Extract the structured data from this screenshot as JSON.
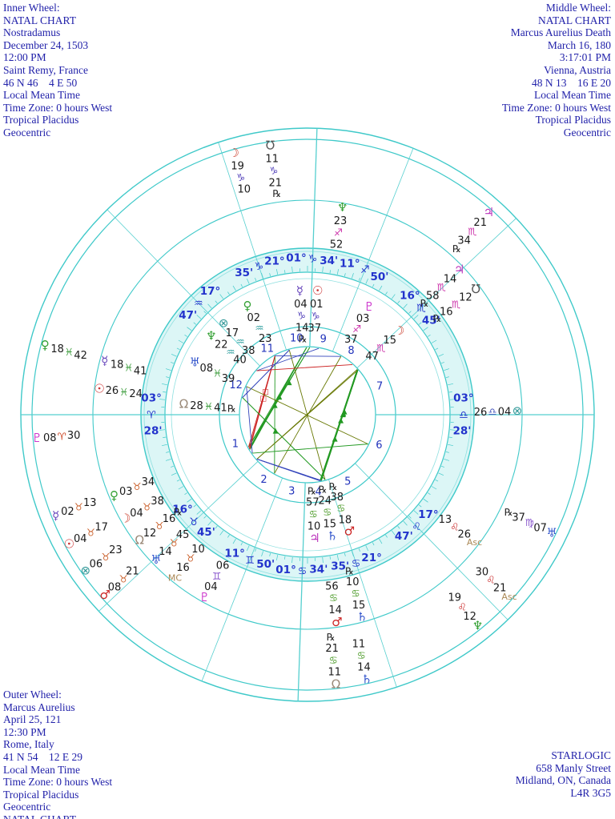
{
  "corner_blocks": {
    "top_left": {
      "lines": [
        "Inner Wheel:",
        "NATAL CHART",
        "Nostradamus",
        "December 24, 1503",
        "12:00 PM",
        "Saint Remy, France",
        "46 N 46    4 E 50",
        "Local Mean Time",
        "Time Zone: 0 hours West",
        "Tropical Placidus",
        "Geocentric"
      ]
    },
    "top_right": {
      "lines": [
        "Middle Wheel:",
        "NATAL CHART",
        "Marcus Aurelius Death",
        "March 16, 180",
        "3:17:01 PM",
        "Vienna, Austria",
        "48 N 13    16 E 20",
        "Local Mean Time",
        "Time Zone: 0 hours West",
        "Tropical Placidus",
        "Geocentric"
      ]
    },
    "bottom_left": {
      "lines": [
        "Outer Wheel:",
        "Marcus Aurelius",
        "April 25, 121",
        "12:30 PM",
        "Rome, Italy",
        "41 N 54    12 E 29",
        "Local Mean Time",
        "Time Zone: 0 hours West",
        "Tropical Placidus",
        "Geocentric",
        "NATAL CHART"
      ]
    },
    "bottom_right": {
      "lines": [
        "STARLOGIC",
        "658 Manly Street",
        "Midland, ON, Canada",
        "L4R 3G5"
      ]
    }
  },
  "colors": {
    "text_blue": "#2222aa",
    "band_label": "#2233cc",
    "band_fill": "#dcf6f6",
    "ring_stroke": "#3fc9c9",
    "ring_stroke_light": "#8fe0e0",
    "house_number": "#2233bb",
    "number_text": "#1a1a1a",
    "aspect_trine": "#229922",
    "aspect_square": "#cc2222",
    "aspect_sextile": "#3344bb",
    "aspect_opposition": "#667700",
    "planets": {
      "sun": "#cc3333",
      "moon": "#cc4433",
      "mercury": "#6644bb",
      "venus": "#33a033",
      "mars": "#cc2222",
      "jupiter": "#bb33bb",
      "saturn": "#3355cc",
      "uranus": "#3355cc",
      "neptune": "#33a033",
      "pluto": "#cc33cc",
      "node": "#998877",
      "snode": "#555555",
      "fortune": "#339999",
      "asc": "#aa8855",
      "mc": "#aa8855"
    },
    "signs": {
      "ari": "#cc4422",
      "tau": "#cc6633",
      "gem": "#8855cc",
      "can": "#55a033",
      "leo": "#cc3333",
      "vir": "#8855cc",
      "lib": "#4455bb",
      "sco": "#cc33aa",
      "sag": "#cc33aa",
      "cap": "#5544bb",
      "aqu": "#33a0a0",
      "pis": "#44a044"
    }
  },
  "glyphs": {
    "planets": {
      "sun": "☉",
      "moon": "☽",
      "mercury": "☿",
      "venus": "♀",
      "mars": "♂",
      "jupiter": "♃",
      "saturn": "♄",
      "uranus": "♅",
      "neptune": "♆",
      "pluto": "♇",
      "node": "Ω",
      "snode": "℧",
      "fortune": "⊗",
      "asc": "Asc",
      "mc": "MC"
    },
    "signs": {
      "ari": "♈",
      "tau": "♉",
      "gem": "♊",
      "can": "♋",
      "leo": "♌",
      "vir": "♍",
      "lib": "♎",
      "sco": "♏",
      "sag": "♐",
      "cap": "♑",
      "aqu": "♒",
      "pis": "♓"
    },
    "retrograde": "℞"
  },
  "houses": {
    "numbers": [
      "1",
      "2",
      "3",
      "4",
      "5",
      "6",
      "7",
      "8",
      "9",
      "10",
      "11",
      "12"
    ]
  },
  "cusps": [
    {
      "house": 1,
      "deg": "03",
      "sign": "ari",
      "min": "28"
    },
    {
      "house": 2,
      "deg": "16",
      "sign": "tau",
      "min": "45"
    },
    {
      "house": 3,
      "deg": "11",
      "sign": "gem",
      "min": "50"
    },
    {
      "house": 4,
      "deg": "01",
      "sign": "can",
      "min": "34"
    },
    {
      "house": 5,
      "deg": "21",
      "sign": "can",
      "min": "35"
    },
    {
      "house": 6,
      "deg": "17",
      "sign": "leo",
      "min": "47"
    },
    {
      "house": 7,
      "deg": "03",
      "sign": "lib",
      "min": "28"
    },
    {
      "house": 8,
      "deg": "16",
      "sign": "sco",
      "min": "45"
    },
    {
      "house": 9,
      "deg": "11",
      "sign": "sag",
      "min": "50"
    },
    {
      "house": 10,
      "deg": "01",
      "sign": "cap",
      "min": "34"
    },
    {
      "house": 11,
      "deg": "21",
      "sign": "cap",
      "min": "35"
    },
    {
      "house": 12,
      "deg": "17",
      "sign": "aqu",
      "min": "47"
    }
  ],
  "wheels": {
    "inner": [
      {
        "p": "sun",
        "deg": "01",
        "sign": "cap",
        "min": "37"
      },
      {
        "p": "mercury",
        "deg": "04",
        "sign": "cap",
        "min": "14",
        "rx": true
      },
      {
        "p": "moon",
        "deg": "15",
        "sign": "sco",
        "min": "47"
      },
      {
        "p": "venus",
        "deg": "02",
        "sign": "aqu",
        "min": "23"
      },
      {
        "p": "mars",
        "deg": "18",
        "sign": "can",
        "min": "38",
        "rx": true
      },
      {
        "p": "jupiter",
        "deg": "10",
        "sign": "can",
        "min": "57",
        "rx": true
      },
      {
        "p": "saturn",
        "deg": "15",
        "sign": "can",
        "min": "24",
        "rx": true
      },
      {
        "p": "uranus",
        "deg": "08",
        "sign": "pis",
        "min": "39"
      },
      {
        "p": "neptune",
        "deg": "22",
        "sign": "aqu",
        "min": "40"
      },
      {
        "p": "pluto",
        "deg": "03",
        "sign": "sag",
        "min": "37"
      },
      {
        "p": "node",
        "deg": "28",
        "sign": "pis",
        "min": "41",
        "rx": true
      },
      {
        "p": "fortune",
        "deg": "17",
        "sign": "aqu",
        "min": "38"
      }
    ],
    "middle": [
      {
        "p": "sun",
        "deg": "26",
        "sign": "pis",
        "min": "24"
      },
      {
        "p": "mercury",
        "deg": "18",
        "sign": "pis",
        "min": "41"
      },
      {
        "p": "moon",
        "deg": "04",
        "sign": "tau",
        "min": "38"
      },
      {
        "p": "venus",
        "deg": "03",
        "sign": "tau",
        "min": "34"
      },
      {
        "p": "mars",
        "deg": "14",
        "sign": "can",
        "min": "56"
      },
      {
        "p": "jupiter",
        "deg": "14",
        "sign": "sco",
        "min": "58",
        "rx": true
      },
      {
        "p": "saturn",
        "deg": "15",
        "sign": "can",
        "min": "10",
        "rx": true
      },
      {
        "p": "uranus",
        "deg": "14",
        "sign": "tau",
        "min": "45"
      },
      {
        "p": "neptune",
        "deg": "23",
        "sign": "sag",
        "min": "52"
      },
      {
        "p": "pluto",
        "deg": "04",
        "sign": "gem",
        "min": "06"
      },
      {
        "p": "node",
        "deg": "12",
        "sign": "tau",
        "min": "16",
        "rx": true
      },
      {
        "p": "snode",
        "deg": "12",
        "sign": "sco",
        "min": "16",
        "rx": true
      },
      {
        "p": "fortune",
        "deg": "04",
        "sign": "lib",
        "min": "26"
      },
      {
        "p": "asc",
        "deg": "26",
        "sign": "leo",
        "min": "13"
      },
      {
        "p": "mc",
        "deg": "16",
        "sign": "tau",
        "min": "10"
      }
    ],
    "outer": [
      {
        "p": "sun",
        "deg": "04",
        "sign": "tau",
        "min": "17"
      },
      {
        "p": "mercury",
        "deg": "02",
        "sign": "tau",
        "min": "13"
      },
      {
        "p": "moon",
        "deg": "19",
        "sign": "cap",
        "min": "10"
      },
      {
        "p": "venus",
        "deg": "18",
        "sign": "pis",
        "min": "42"
      },
      {
        "p": "mars",
        "deg": "08",
        "sign": "tau",
        "min": "21"
      },
      {
        "p": "jupiter",
        "deg": "21",
        "sign": "sco",
        "min": "34",
        "rx": true
      },
      {
        "p": "saturn",
        "deg": "14",
        "sign": "can",
        "min": "11"
      },
      {
        "p": "uranus",
        "deg": "07",
        "sign": "vir",
        "min": "37",
        "rx": true
      },
      {
        "p": "neptune",
        "deg": "12",
        "sign": "leo",
        "min": "19"
      },
      {
        "p": "pluto",
        "deg": "08",
        "sign": "ari",
        "min": "30"
      },
      {
        "p": "node",
        "deg": "11",
        "sign": "can",
        "min": "21",
        "rx": true
      },
      {
        "p": "snode",
        "deg": "11",
        "sign": "cap",
        "min": "21",
        "rx": true
      },
      {
        "p": "fortune",
        "deg": "06",
        "sign": "tau",
        "min": "23"
      },
      {
        "p": "asc",
        "deg": "21",
        "sign": "leo",
        "min": "30"
      }
    ]
  },
  "geometry_note": "tri-wheel natal chart, ascendant 3 Aries 28 at left, houses counterclockwise"
}
